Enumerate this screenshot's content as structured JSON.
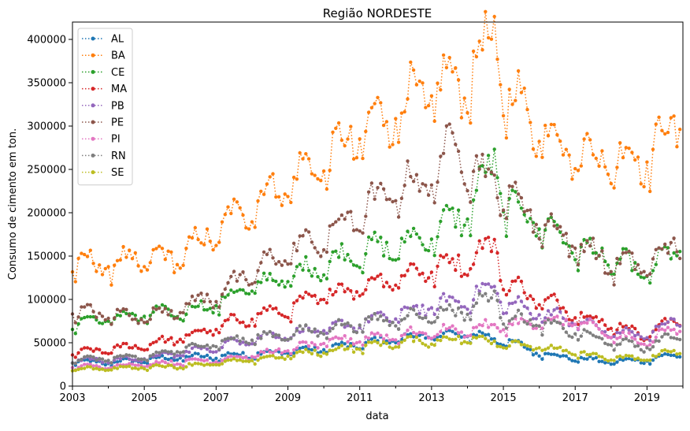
{
  "chart_data": {
    "type": "line",
    "title": "Região NORDESTE",
    "xlabel": "data",
    "ylabel": "Consumo de cimento em ton.",
    "xlim": [
      "2003-01",
      "2019-12"
    ],
    "ylim": [
      0,
      420000
    ],
    "x_ticks": [
      "2003",
      "2005",
      "2007",
      "2009",
      "2011",
      "2013",
      "2015",
      "2017",
      "2019"
    ],
    "y_ticks": [
      0,
      50000,
      100000,
      150000,
      200000,
      250000,
      300000,
      350000,
      400000
    ],
    "y_tick_labels": [
      "0",
      "50000",
      "100000",
      "150000",
      "200000",
      "250000",
      "300000",
      "350000",
      "400000"
    ],
    "grid": false,
    "legend_position": "upper-left",
    "line_style": "dotted with point markers",
    "series": [
      {
        "name": "AL",
        "color": "#1f77b4",
        "values": [
          [
            2003,
            28000
          ],
          [
            2004,
            27000
          ],
          [
            2005,
            30000
          ],
          [
            2006,
            33000
          ],
          [
            2007,
            34000
          ],
          [
            2008,
            37000
          ],
          [
            2009,
            40000
          ],
          [
            2010,
            43000
          ],
          [
            2011,
            48000
          ],
          [
            2012,
            55000
          ],
          [
            2013,
            58000
          ],
          [
            2014,
            60000
          ],
          [
            2015,
            53000
          ],
          [
            2016,
            38000
          ],
          [
            2017,
            32000
          ],
          [
            2018,
            28000
          ],
          [
            2019,
            30000
          ],
          [
            2019.9,
            37000
          ]
        ]
      },
      {
        "name": "BA",
        "color": "#ff7f0e",
        "values": [
          [
            2003,
            140000
          ],
          [
            2004,
            140000
          ],
          [
            2005,
            145000
          ],
          [
            2006,
            150000
          ],
          [
            2007,
            178000
          ],
          [
            2008,
            210000
          ],
          [
            2009,
            235000
          ],
          [
            2010,
            258000
          ],
          [
            2011,
            290000
          ],
          [
            2012,
            318000
          ],
          [
            2013,
            340000
          ],
          [
            2014,
            355000
          ],
          [
            2014.8,
            402000
          ],
          [
            2015,
            340000
          ],
          [
            2016,
            300000
          ],
          [
            2017,
            270000
          ],
          [
            2018,
            260000
          ],
          [
            2019,
            265000
          ],
          [
            2019.9,
            305000
          ]
        ]
      },
      {
        "name": "CE",
        "color": "#2ca02c",
        "values": [
          [
            2003,
            72000
          ],
          [
            2004,
            78000
          ],
          [
            2005,
            82000
          ],
          [
            2006,
            85000
          ],
          [
            2007,
            95000
          ],
          [
            2008,
            115000
          ],
          [
            2009,
            125000
          ],
          [
            2010,
            140000
          ],
          [
            2011,
            155000
          ],
          [
            2012,
            160000
          ],
          [
            2013,
            175000
          ],
          [
            2014,
            200000
          ],
          [
            2014.8,
            262000
          ],
          [
            2015,
            210000
          ],
          [
            2016,
            190000
          ],
          [
            2017,
            160000
          ],
          [
            2018,
            145000
          ],
          [
            2019,
            130000
          ],
          [
            2019.9,
            160000
          ]
        ]
      },
      {
        "name": "MA",
        "color": "#d62728",
        "values": [
          [
            2003,
            38000
          ],
          [
            2004,
            42000
          ],
          [
            2005,
            47000
          ],
          [
            2006,
            55000
          ],
          [
            2007,
            67000
          ],
          [
            2008,
            80000
          ],
          [
            2009,
            88000
          ],
          [
            2010,
            105000
          ],
          [
            2011,
            115000
          ],
          [
            2012,
            125000
          ],
          [
            2013,
            135000
          ],
          [
            2014,
            145000
          ],
          [
            2014.8,
            165000
          ],
          [
            2015,
            120000
          ],
          [
            2016,
            100000
          ],
          [
            2017,
            85000
          ],
          [
            2018,
            70000
          ],
          [
            2019,
            60000
          ],
          [
            2019.9,
            78000
          ]
        ]
      },
      {
        "name": "PB",
        "color": "#9467bd",
        "values": [
          [
            2003,
            30000
          ],
          [
            2004,
            30000
          ],
          [
            2005,
            32000
          ],
          [
            2006,
            38000
          ],
          [
            2007,
            45000
          ],
          [
            2008,
            55000
          ],
          [
            2009,
            60000
          ],
          [
            2010,
            65000
          ],
          [
            2011,
            72000
          ],
          [
            2012,
            82000
          ],
          [
            2013,
            92000
          ],
          [
            2014,
            100000
          ],
          [
            2014.8,
            115000
          ],
          [
            2015,
            95000
          ],
          [
            2016,
            85000
          ],
          [
            2017,
            75000
          ],
          [
            2018,
            62000
          ],
          [
            2019,
            58000
          ],
          [
            2019.9,
            80000
          ]
        ]
      },
      {
        "name": "PE",
        "color": "#8c564b",
        "values": [
          [
            2003,
            85000
          ],
          [
            2004,
            82000
          ],
          [
            2005,
            80000
          ],
          [
            2006,
            90000
          ],
          [
            2007,
            105000
          ],
          [
            2008,
            130000
          ],
          [
            2009,
            155000
          ],
          [
            2010,
            170000
          ],
          [
            2011,
            200000
          ],
          [
            2012,
            225000
          ],
          [
            2013,
            240000
          ],
          [
            2013.8,
            285000
          ],
          [
            2014,
            255000
          ],
          [
            2015,
            225000
          ],
          [
            2016,
            190000
          ],
          [
            2017,
            165000
          ],
          [
            2018,
            140000
          ],
          [
            2019,
            140000
          ],
          [
            2019.9,
            165000
          ]
        ]
      },
      {
        "name": "PI",
        "color": "#e377c2",
        "values": [
          [
            2003,
            22000
          ],
          [
            2004,
            23000
          ],
          [
            2005,
            25000
          ],
          [
            2006,
            28000
          ],
          [
            2007,
            30000
          ],
          [
            2008,
            35000
          ],
          [
            2009,
            42000
          ],
          [
            2010,
            50000
          ],
          [
            2011,
            55000
          ],
          [
            2012,
            58000
          ],
          [
            2013,
            62000
          ],
          [
            2014,
            65000
          ],
          [
            2015,
            70000
          ],
          [
            2016,
            72000
          ],
          [
            2017,
            75000
          ],
          [
            2018,
            58000
          ],
          [
            2019,
            50000
          ],
          [
            2019.9,
            70000
          ]
        ]
      },
      {
        "name": "RN",
        "color": "#7f7f7f",
        "values": [
          [
            2003,
            30000
          ],
          [
            2004,
            32000
          ],
          [
            2005,
            33000
          ],
          [
            2006,
            42000
          ],
          [
            2007,
            50000
          ],
          [
            2008,
            55000
          ],
          [
            2009,
            60000
          ],
          [
            2010,
            65000
          ],
          [
            2011,
            72000
          ],
          [
            2012,
            78000
          ],
          [
            2013,
            82000
          ],
          [
            2014,
            88000
          ],
          [
            2014.8,
            105000
          ],
          [
            2015,
            80000
          ],
          [
            2016,
            72000
          ],
          [
            2017,
            62000
          ],
          [
            2018,
            50000
          ],
          [
            2019,
            45000
          ],
          [
            2019.9,
            60000
          ]
        ]
      },
      {
        "name": "SE",
        "color": "#bcbd22",
        "values": [
          [
            2003,
            20000
          ],
          [
            2004,
            20000
          ],
          [
            2005,
            22000
          ],
          [
            2006,
            23000
          ],
          [
            2007,
            26000
          ],
          [
            2008,
            30000
          ],
          [
            2009,
            35000
          ],
          [
            2010,
            40000
          ],
          [
            2011,
            45000
          ],
          [
            2012,
            50000
          ],
          [
            2013,
            52000
          ],
          [
            2014,
            55000
          ],
          [
            2015,
            50000
          ],
          [
            2016,
            45000
          ],
          [
            2017,
            38000
          ],
          [
            2018,
            32000
          ],
          [
            2019,
            32000
          ],
          [
            2019.9,
            42000
          ]
        ]
      }
    ]
  }
}
